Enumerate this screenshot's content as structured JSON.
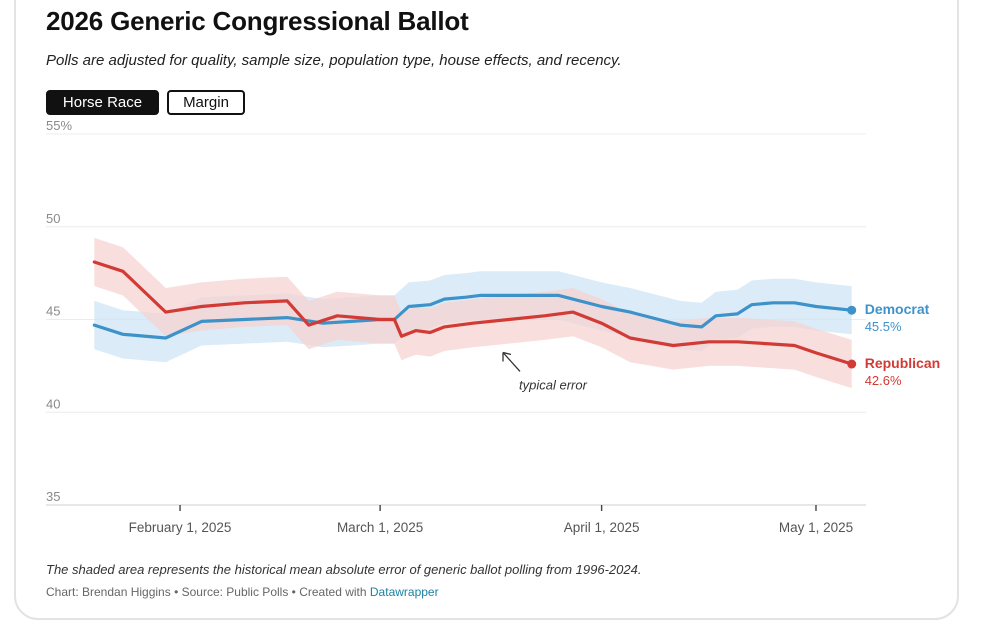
{
  "header": {
    "title": "2026 Generic Congressional Ballot",
    "subtitle": "Polls are adjusted for quality, sample size, population type, house effects, and recency."
  },
  "toggles": {
    "horse_race": "Horse Race",
    "margin": "Margin",
    "active": "horse_race"
  },
  "chart_data": {
    "type": "line",
    "title": "2026 Generic Congressional Ballot",
    "xlabel": "",
    "ylabel": "",
    "ylim": [
      35,
      55
    ],
    "xlim": [
      "2025-01-18",
      "2025-05-08"
    ],
    "y_ticks": [
      35,
      40,
      45,
      50,
      55
    ],
    "y_tick_labels": [
      "35",
      "40",
      "45",
      "50",
      "55%"
    ],
    "x_ticks": [
      "2025-02-01",
      "2025-03-01",
      "2025-04-01",
      "2025-05-01"
    ],
    "x_tick_labels": [
      "February 1, 2025",
      "March 1, 2025",
      "April 1, 2025",
      "May 1, 2025"
    ],
    "grid": true,
    "shaded_band": "historical mean absolute error",
    "annotation": "typical error",
    "series": [
      {
        "name": "Democrat",
        "color": "#3d93c9",
        "band_color": "#cfe6f5",
        "end_label": "Democrat",
        "end_value": "45.5%",
        "points": [
          [
            "2025-01-20",
            44.7
          ],
          [
            "2025-01-24",
            44.2
          ],
          [
            "2025-01-30",
            44.0
          ],
          [
            "2025-02-04",
            44.9
          ],
          [
            "2025-02-10",
            45.0
          ],
          [
            "2025-02-16",
            45.1
          ],
          [
            "2025-02-21",
            44.8
          ],
          [
            "2025-02-25",
            44.9
          ],
          [
            "2025-03-01",
            45.0
          ],
          [
            "2025-03-03",
            45.0
          ],
          [
            "2025-03-05",
            45.7
          ],
          [
            "2025-03-08",
            45.8
          ],
          [
            "2025-03-10",
            46.1
          ],
          [
            "2025-03-13",
            46.2
          ],
          [
            "2025-03-15",
            46.3
          ],
          [
            "2025-03-20",
            46.3
          ],
          [
            "2025-03-26",
            46.3
          ],
          [
            "2025-04-01",
            45.7
          ],
          [
            "2025-04-05",
            45.4
          ],
          [
            "2025-04-09",
            45.0
          ],
          [
            "2025-04-12",
            44.7
          ],
          [
            "2025-04-15",
            44.6
          ],
          [
            "2025-04-17",
            45.2
          ],
          [
            "2025-04-20",
            45.3
          ],
          [
            "2025-04-22",
            45.8
          ],
          [
            "2025-04-25",
            45.9
          ],
          [
            "2025-04-28",
            45.9
          ],
          [
            "2025-05-01",
            45.7
          ],
          [
            "2025-05-06",
            45.5
          ]
        ]
      },
      {
        "name": "Republican",
        "color": "#d23b35",
        "band_color": "#f6d3d1",
        "end_label": "Republican",
        "end_value": "42.6%",
        "points": [
          [
            "2025-01-20",
            48.1
          ],
          [
            "2025-01-24",
            47.6
          ],
          [
            "2025-01-30",
            45.4
          ],
          [
            "2025-02-04",
            45.7
          ],
          [
            "2025-02-10",
            45.9
          ],
          [
            "2025-02-16",
            46.0
          ],
          [
            "2025-02-19",
            44.7
          ],
          [
            "2025-02-23",
            45.2
          ],
          [
            "2025-03-01",
            45.0
          ],
          [
            "2025-03-03",
            45.0
          ],
          [
            "2025-03-04",
            44.1
          ],
          [
            "2025-03-06",
            44.4
          ],
          [
            "2025-03-08",
            44.3
          ],
          [
            "2025-03-10",
            44.6
          ],
          [
            "2025-03-14",
            44.8
          ],
          [
            "2025-03-19",
            45.0
          ],
          [
            "2025-03-24",
            45.2
          ],
          [
            "2025-03-28",
            45.4
          ],
          [
            "2025-04-01",
            44.8
          ],
          [
            "2025-04-05",
            44.0
          ],
          [
            "2025-04-11",
            43.6
          ],
          [
            "2025-04-16",
            43.8
          ],
          [
            "2025-04-20",
            43.8
          ],
          [
            "2025-04-24",
            43.7
          ],
          [
            "2025-04-28",
            43.6
          ],
          [
            "2025-05-01",
            43.2
          ],
          [
            "2025-05-06",
            42.6
          ]
        ]
      }
    ]
  },
  "footer": {
    "note": "The shaded area represents the historical mean absolute error of generic ballot polling from 1996-2024.",
    "credit_prefix": "Chart: Brendan Higgins • Source: Public Polls • Created with ",
    "credit_link": "Datawrapper"
  }
}
